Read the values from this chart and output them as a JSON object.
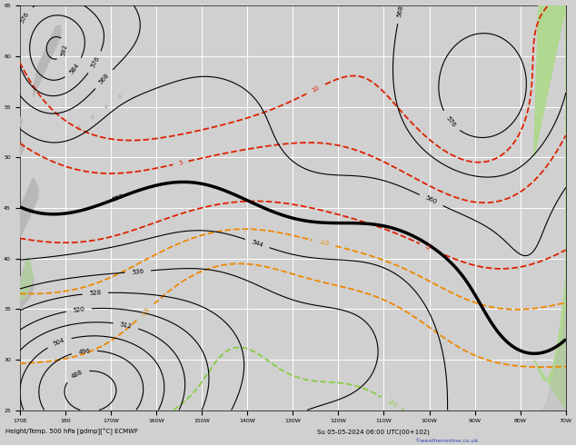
{
  "title": "Height/Temp. 500 hPa [gdmp][°C] ECMWF",
  "subtitle": "Su 05-05-2024 06:00 UTC(00+102)",
  "footer": "©weatheronline.co.uk",
  "bg_color": "#d0d0d0",
  "ocean_color": "#d0d0d0",
  "land_gray": "#b8b8b8",
  "land_green": "#b0d890",
  "grid_color": "#ffffff",
  "black": "#000000",
  "red": "#dd2200",
  "orange": "#ee8800",
  "lgreen": "#88cc44",
  "cyan": "#44bbbb",
  "blue": "#2266ee",
  "fig_w": 6.34,
  "fig_h": 4.9,
  "dpi": 100
}
